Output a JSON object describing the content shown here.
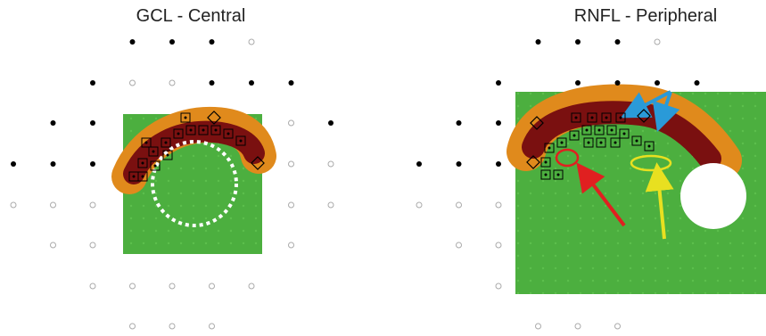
{
  "panels": [
    {
      "title": "GCL - Central"
    },
    {
      "title": "RNFL - Peripheral"
    }
  ]
}
